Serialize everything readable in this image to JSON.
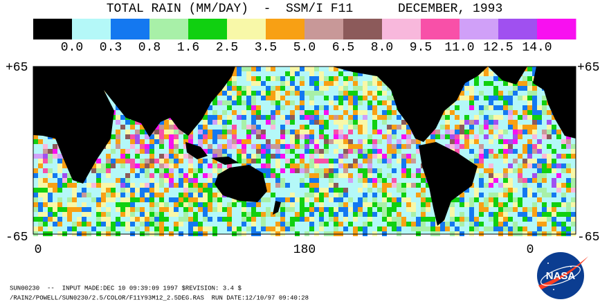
{
  "header": {
    "title": "TOTAL RAIN (MM/DAY)  -  SSM/I F11      DECEMBER, 1993"
  },
  "legend": {
    "colors": [
      "#000000",
      "#b4f8f8",
      "#1478f0",
      "#a8f0a8",
      "#10d010",
      "#f8f8a8",
      "#f8a014",
      "#c89898",
      "#8c5a5a",
      "#f8b8dc",
      "#f850a8",
      "#d0a0f8",
      "#a050f0",
      "#f810f0"
    ],
    "labels": [
      "0.0",
      "0.3",
      "0.8",
      "1.6",
      "2.5",
      "3.5",
      "5.0",
      "6.5",
      "8.0",
      "9.5",
      "11.0",
      "12.5",
      "14.0"
    ]
  },
  "map": {
    "lat_top_left": "+65",
    "lat_top_right": "+65",
    "lat_bottom_left": "-65",
    "lat_bottom_right": "-65",
    "lon_labels": [
      "0",
      "180",
      "0"
    ]
  },
  "footer": {
    "line1": "SUN00230  --  INPUT MADE:DEC 10 09:39:09 1997 $REVISION: 3.4 $",
    "line2": "/RAIN2/POWELL/SUN0230/2.5/COLOR/F11Y93M12_2.5DEG.RAS  RUN DATE:12/10/97 09:40:28"
  },
  "logo": {
    "text": "NASA"
  }
}
